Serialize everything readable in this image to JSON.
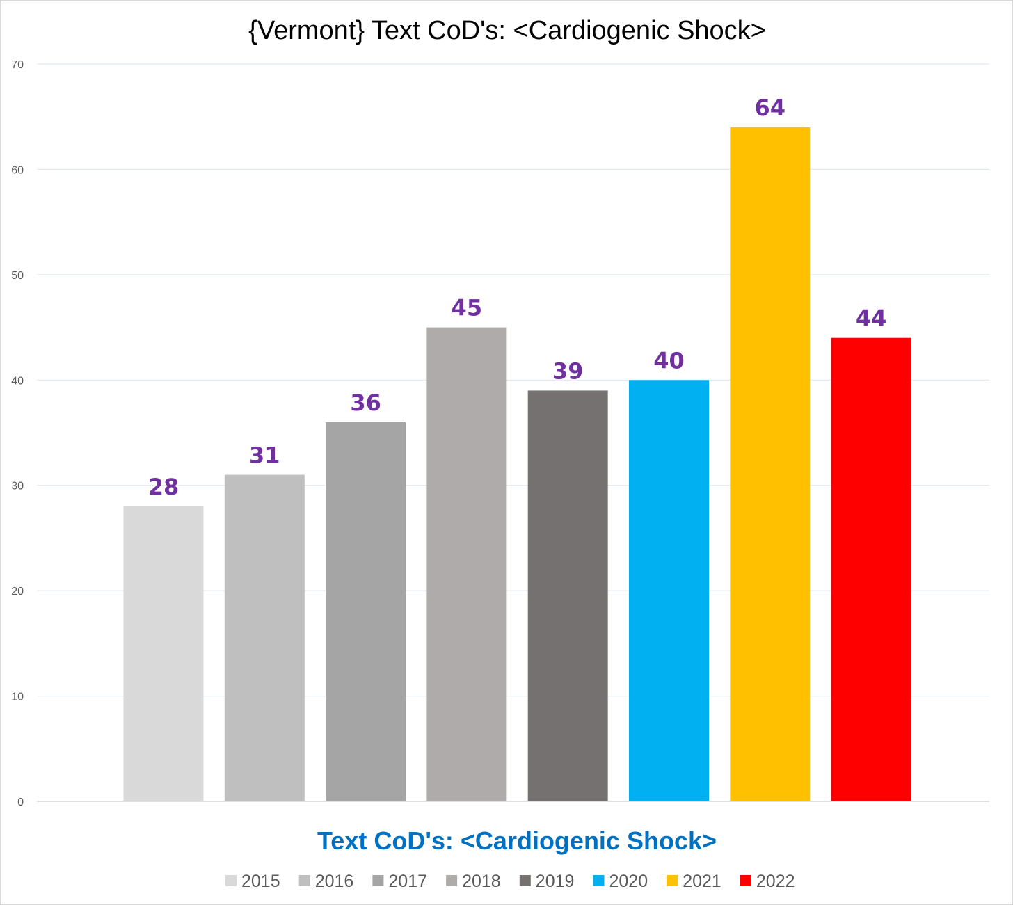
{
  "chart_data": {
    "type": "bar",
    "title": "{Vermont}  Text CoD's: <Cardiogenic Shock>",
    "xlabel": "Text CoD's: <Cardiogenic Shock>",
    "ylabel": "",
    "ylim": [
      0,
      70
    ],
    "yticks": [
      0,
      10,
      20,
      30,
      40,
      50,
      60,
      70
    ],
    "grid": true,
    "legend_position": "bottom",
    "series": [
      {
        "name": "2015",
        "value": 28,
        "color": "#d9d9d9"
      },
      {
        "name": "2016",
        "value": 31,
        "color": "#bfbfbf"
      },
      {
        "name": "2017",
        "value": 36,
        "color": "#a5a5a5"
      },
      {
        "name": "2018",
        "value": 45,
        "color": "#afabab"
      },
      {
        "name": "2019",
        "value": 39,
        "color": "#767171"
      },
      {
        "name": "2020",
        "value": 40,
        "color": "#00b0f0"
      },
      {
        "name": "2021",
        "value": 64,
        "color": "#ffc000"
      },
      {
        "name": "2022",
        "value": 44,
        "color": "#ff0000"
      }
    ]
  }
}
